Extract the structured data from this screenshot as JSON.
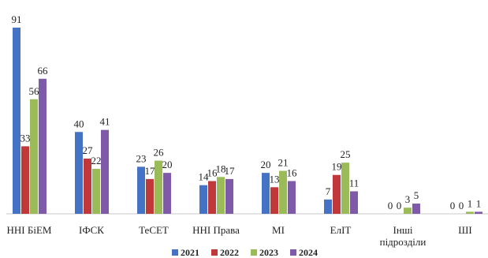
{
  "chart_data": {
    "type": "bar",
    "title": "",
    "xlabel": "",
    "ylabel": "",
    "ylim": [
      0,
      95
    ],
    "grid": false,
    "legend_position": "bottom",
    "categories": [
      [
        "ННІ БіЕМ"
      ],
      [
        "ІФСК"
      ],
      [
        "ТеСЕТ"
      ],
      [
        "ННІ Права"
      ],
      [
        "МІ"
      ],
      [
        "ЕлІТ"
      ],
      [
        "Інші",
        "підрозділи"
      ],
      [
        "ШІ"
      ]
    ],
    "series": [
      {
        "name": "2021",
        "color": "#4472C4",
        "values": [
          91,
          40,
          23,
          14,
          20,
          7,
          0,
          0
        ]
      },
      {
        "name": "2022",
        "color": "#C0383A",
        "values": [
          33,
          27,
          17,
          16,
          13,
          19,
          0,
          0
        ]
      },
      {
        "name": "2023",
        "color": "#9BBB59",
        "values": [
          56,
          22,
          26,
          18,
          21,
          25,
          3,
          1
        ]
      },
      {
        "name": "2024",
        "color": "#7E5AA8",
        "values": [
          66,
          41,
          20,
          17,
          16,
          11,
          5,
          1
        ]
      }
    ]
  }
}
